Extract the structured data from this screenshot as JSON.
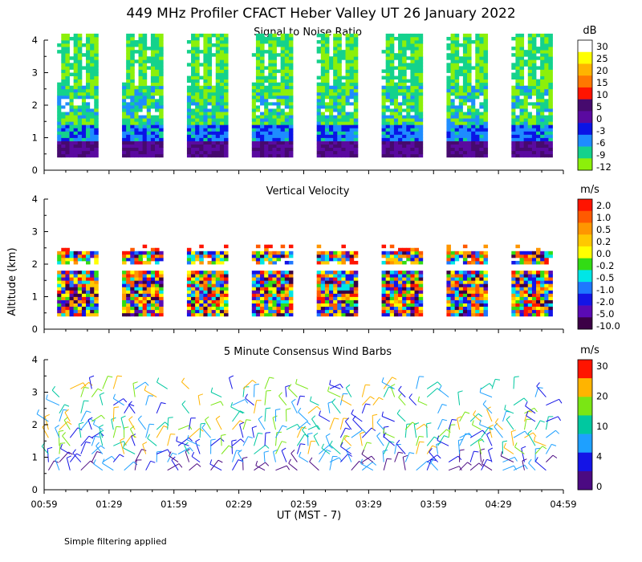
{
  "title": "449 MHz Profiler CFACT Heber Valley UT 26 January 2022",
  "footnote": "Simple filtering applied",
  "xlabel": "UT  (MST - 7)",
  "ylabel": "Altitude (km)",
  "colors": {
    "scale": [
      "#5a0a6e",
      "#3c0aa0",
      "#0a14e6",
      "#1e78ff",
      "#00c8f0",
      "#14d28c",
      "#32e614",
      "#b4f00a",
      "#fff000",
      "#ffb400",
      "#ff6e00",
      "#ff1e00",
      "#ffffff"
    ]
  },
  "chart_data": [
    {
      "type": "heatmap",
      "title": "Signal to Noise Ratio",
      "xlabel": "UT  (MST - 7)",
      "ylabel": "Altitude (km)",
      "xlim": [
        "00:59",
        "04:59"
      ],
      "ylim": [
        0,
        4
      ],
      "x_ticks": [
        "00:59",
        "01:29",
        "01:59",
        "02:29",
        "02:59",
        "03:29",
        "03:59",
        "04:29",
        "04:59"
      ],
      "y_ticks": [
        "0",
        "1",
        "2",
        "3",
        "4"
      ],
      "colorbar": {
        "unit": "dB",
        "labels": [
          "30",
          "25",
          "20",
          "15",
          "10",
          "5",
          "0",
          "-3",
          "-6",
          "-9",
          "-12"
        ]
      },
      "data_blocks": [
        {
          "start": "01:05",
          "end": "01:24"
        },
        {
          "start": "01:35",
          "end": "01:54"
        },
        {
          "start": "02:05",
          "end": "02:24"
        },
        {
          "start": "02:35",
          "end": "02:54"
        },
        {
          "start": "03:05",
          "end": "03:24"
        },
        {
          "start": "03:35",
          "end": "03:54"
        },
        {
          "start": "04:05",
          "end": "04:24"
        },
        {
          "start": "04:35",
          "end": "04:54"
        }
      ],
      "data_altitude_range_km": [
        0.4,
        4.2
      ]
    },
    {
      "type": "heatmap",
      "title": "Vertical Velocity",
      "xlabel": "UT  (MST - 7)",
      "ylabel": "Altitude (km)",
      "xlim": [
        "00:59",
        "04:59"
      ],
      "ylim": [
        0,
        4
      ],
      "x_ticks": [
        "00:59",
        "01:29",
        "01:59",
        "02:29",
        "02:59",
        "03:29",
        "03:59",
        "04:29",
        "04:59"
      ],
      "y_ticks": [
        "0",
        "1",
        "2",
        "3",
        "4"
      ],
      "colorbar": {
        "unit": "m/s",
        "labels": [
          "2.0",
          "1.0",
          "0.5",
          "0.2",
          "0.0",
          "-0.2",
          "-0.5",
          "-1.0",
          "-2.0",
          "-5.0",
          "-10.0"
        ]
      },
      "data_blocks": [
        {
          "start": "01:05",
          "end": "01:24"
        },
        {
          "start": "01:35",
          "end": "01:54"
        },
        {
          "start": "02:05",
          "end": "02:24"
        },
        {
          "start": "02:35",
          "end": "02:54"
        },
        {
          "start": "03:05",
          "end": "03:24"
        },
        {
          "start": "03:35",
          "end": "03:54"
        },
        {
          "start": "04:05",
          "end": "04:24"
        },
        {
          "start": "04:35",
          "end": "04:54"
        }
      ],
      "data_altitude_range_km": [
        0.4,
        2.6
      ]
    },
    {
      "type": "scatter",
      "title": "5 Minute Consensus Wind Barbs",
      "xlabel": "UT  (MST - 7)",
      "ylabel": "Altitude (km)",
      "xlim": [
        "00:59",
        "04:59"
      ],
      "ylim": [
        0,
        4
      ],
      "x_ticks": [
        "00:59",
        "01:29",
        "01:59",
        "02:29",
        "02:59",
        "03:29",
        "03:59",
        "04:29",
        "04:59"
      ],
      "y_ticks": [
        "0",
        "1",
        "2",
        "3",
        "4"
      ],
      "colorbar": {
        "unit": "m/s",
        "labels": [
          "30",
          "20",
          "10",
          "4",
          "0"
        ]
      },
      "barb_altitude_range_km": [
        0.6,
        3.1
      ]
    }
  ]
}
